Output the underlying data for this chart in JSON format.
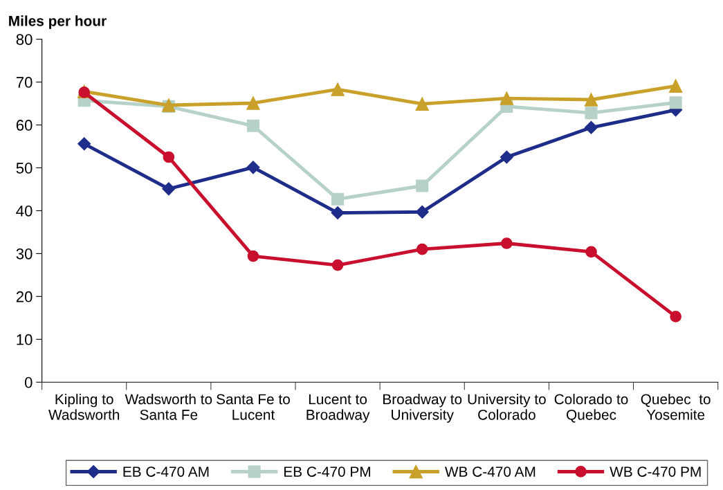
{
  "chart_data": {
    "type": "line",
    "ylabel": "Miles per hour",
    "categories": [
      "Kipling to\nWadsworth",
      "Wadsworth to\nSanta Fe",
      "Santa Fe to\nLucent",
      "Lucent to\nBroadway",
      "Broadway to\nUniversity",
      "University to\nColorado",
      "Colorado to\nQuebec",
      "Quebec  to\nYosemite"
    ],
    "series": [
      {
        "name": "EB C-470 AM",
        "color": "#1f2d8a",
        "marker": "diamond",
        "values": [
          55.6,
          45.1,
          50.1,
          39.5,
          39.7,
          52.5,
          59.4,
          63.5
        ]
      },
      {
        "name": "EB C-470 PM",
        "color": "#b5d1c8",
        "marker": "square",
        "values": [
          65.7,
          64.3,
          59.8,
          42.7,
          45.8,
          64.3,
          62.8,
          65.2
        ]
      },
      {
        "name": "WB C-470 AM",
        "color": "#c9a12a",
        "marker": "triangle",
        "values": [
          67.8,
          64.6,
          65.1,
          68.3,
          64.9,
          66.2,
          65.9,
          69.1
        ]
      },
      {
        "name": "WB C-470 PM",
        "color": "#c8102e",
        "marker": "circle",
        "values": [
          67.6,
          52.5,
          29.4,
          27.3,
          31.0,
          32.4,
          30.4,
          15.3
        ]
      }
    ],
    "ylim": [
      0,
      80
    ],
    "yticks": [
      0,
      10,
      20,
      30,
      40,
      50,
      60,
      70,
      80
    ],
    "grid": false,
    "legend": "bottom",
    "line_style": "solid"
  }
}
